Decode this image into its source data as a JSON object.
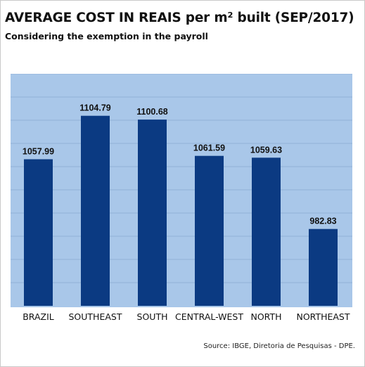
{
  "header": {
    "title": "AVERAGE COST IN REAIS per m² built (SEP/2017)",
    "subtitle": "Considering the exemption in the payroll"
  },
  "footer": {
    "source": "Source: IBGE, Diretoria de Pesquisas - DPE."
  },
  "colors": {
    "bar": "#0b3a82",
    "plot_background": "#a9c7e9",
    "gridline": "#8aa9cf"
  },
  "chart_data": {
    "type": "bar",
    "title": "AVERAGE COST IN REAIS per m² built (SEP/2017)",
    "subtitle": "Considering the exemption in the payroll",
    "categories": [
      "BRAZIL",
      "SOUTHEAST",
      "SOUTH",
      "CENTRAL-WEST",
      "NORTH",
      "NORTHEAST"
    ],
    "values": [
      1057.99,
      1104.79,
      1100.68,
      1061.59,
      1059.63,
      982.83
    ],
    "value_labels": [
      "1057.99",
      "1104.79",
      "1100.68",
      "1061.59",
      "1059.63",
      "982.83"
    ],
    "xlabel": "",
    "ylabel": "",
    "ylim": [
      900,
      1150
    ],
    "grid": true,
    "legend": "none"
  }
}
